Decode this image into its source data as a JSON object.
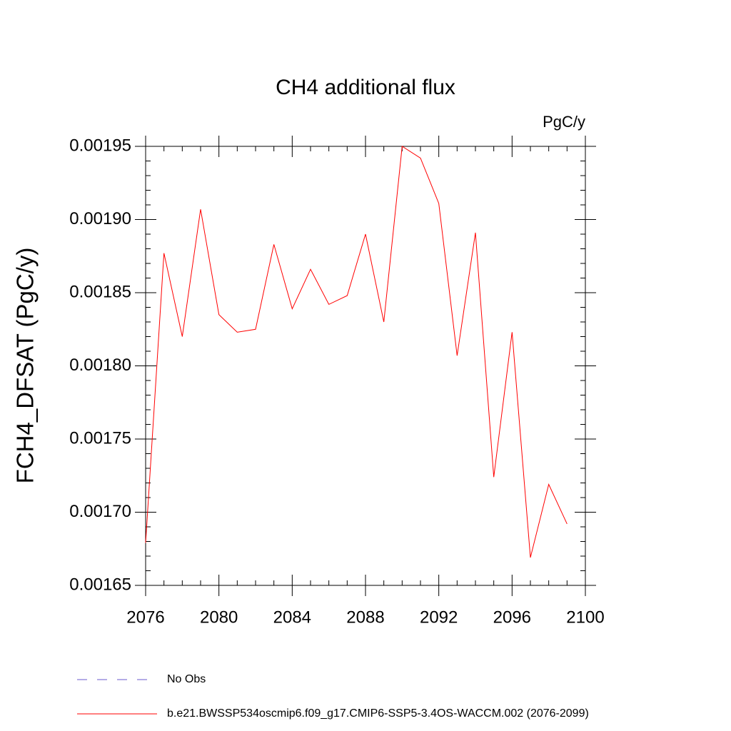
{
  "chart_data": {
    "type": "line",
    "title": "CH4 additional flux",
    "units": "PgC/y",
    "y_label": "FCH4_DFSAT  (PgC/y)",
    "x": [
      2076,
      2077,
      2078,
      2079,
      2080,
      2081,
      2082,
      2083,
      2084,
      2085,
      2086,
      2087,
      2088,
      2089,
      2090,
      2091,
      2092,
      2093,
      2094,
      2095,
      2096,
      2097,
      2098,
      2099
    ],
    "series": [
      {
        "name": "b.e21.BWSSP534oscmip6.f09_g17.CMIP6-SSP5-3.4OS-WACCM.002 (2076-2099)",
        "color": "#ff0000",
        "values": [
          0.001679,
          0.001877,
          0.00182,
          0.001907,
          0.001835,
          0.001823,
          0.001825,
          0.001883,
          0.001839,
          0.001866,
          0.001842,
          0.001848,
          0.00189,
          0.00183,
          0.00195,
          0.001942,
          0.001911,
          0.001807,
          0.001891,
          0.001724,
          0.001823,
          0.001669,
          0.001719,
          0.001692
        ]
      }
    ],
    "reference_lines": [
      {
        "name": "No Obs",
        "color": "#6a5acd",
        "style": "dashed"
      }
    ],
    "xlim": [
      2076,
      2100
    ],
    "xticks": [
      2076,
      2080,
      2084,
      2088,
      2092,
      2096,
      2100
    ],
    "ylim": [
      0.00165,
      0.00195
    ],
    "yticks": [
      0.00165,
      {
        "value": 0.0017,
        "label": "0.00170"
      },
      0.00175,
      {
        "value": 0.0018,
        "label": "0.00180"
      },
      0.00185,
      {
        "value": 0.0019,
        "label": "0.00190"
      },
      0.00195
    ]
  }
}
